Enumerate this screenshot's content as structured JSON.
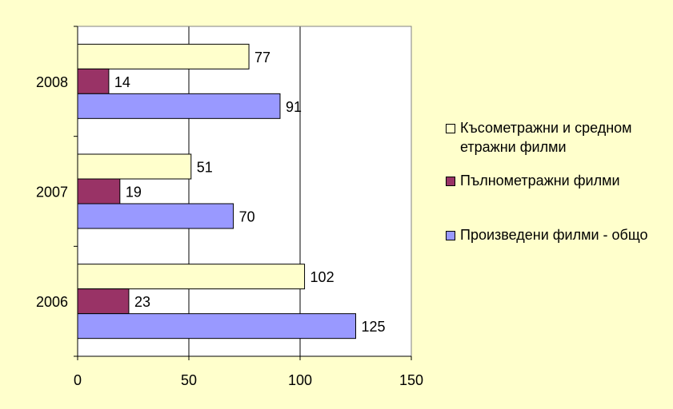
{
  "chart_data": {
    "type": "bar",
    "orientation": "horizontal",
    "categories": [
      "2006",
      "2007",
      "2008"
    ],
    "series": [
      {
        "name": "Произведени филми - общо",
        "values": [
          125,
          70,
          91
        ],
        "color": "#9999ff"
      },
      {
        "name": "Пълнометражни филми",
        "values": [
          23,
          19,
          14
        ],
        "color": "#993366"
      },
      {
        "name": "Късометражни и средном етражни филми",
        "values": [
          102,
          51,
          77
        ],
        "color": "#ffffcc"
      }
    ],
    "legend_labels": [
      "Късометражни и средном етражни филми",
      "Пълнометражни филми",
      "Произведени филми - общо"
    ],
    "xlim": [
      0,
      150
    ],
    "x_ticks": [
      "0",
      "50",
      "100",
      "150"
    ],
    "grid": "vertical",
    "legend": "right",
    "plot_background": "#ffffff",
    "page_background": "#ffffcc"
  }
}
